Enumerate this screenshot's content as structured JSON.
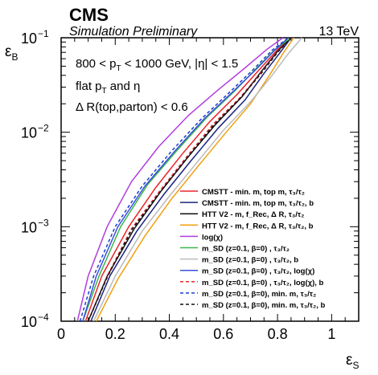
{
  "header": {
    "experiment": "CMS",
    "status": "Simulation Preliminary",
    "energy": "13 TeV"
  },
  "cuts": {
    "line1": "800 < p",
    "line1_sub": "T",
    "line1_rest": " < 1000 GeV, |η| < 1.5",
    "line2": "flat p",
    "line2_sub": "T",
    "line2_rest": " and η",
    "line3": "Δ R(top,parton) < 0.6"
  },
  "chart_data": {
    "type": "line",
    "xlabel": "ε",
    "xlabel_sub": "S",
    "ylabel": "ε",
    "ylabel_sub": "B",
    "xlim": [
      0,
      1.1
    ],
    "ylim": [
      0.0001,
      0.1
    ],
    "yscale": "log",
    "x_ticks": [
      {
        "v": 0,
        "label": "0"
      },
      {
        "v": 0.2,
        "label": "0.2"
      },
      {
        "v": 0.4,
        "label": "0.4"
      },
      {
        "v": 0.6,
        "label": "0.6"
      },
      {
        "v": 0.8,
        "label": "0.8"
      },
      {
        "v": 1.0,
        "label": "1"
      }
    ],
    "y_ticks": [
      {
        "v": 0.0001,
        "base": "10",
        "exp": "−4"
      },
      {
        "v": 0.001,
        "base": "10",
        "exp": "−3"
      },
      {
        "v": 0.01,
        "base": "10",
        "exp": "−2"
      },
      {
        "v": 0.1,
        "base": "10",
        "exp": "−1"
      }
    ],
    "grid": false,
    "legend_position": "bottom-right",
    "series": [
      {
        "legend": "CMSTT - min. m, top m, τ₃/τ₂",
        "color": "#e8252a",
        "dash": "solid",
        "x": [
          0.09,
          0.15,
          0.25,
          0.35,
          0.45,
          0.55,
          0.65,
          0.73,
          0.8,
          0.85
        ],
        "y": [
          0.0001,
          0.0003,
          0.001,
          0.0026,
          0.006,
          0.013,
          0.025,
          0.045,
          0.075,
          0.1
        ]
      },
      {
        "legend": "CMSTT - min. m, top m, τ₃/τ₂, b",
        "color": "#1a237e",
        "dash": "solid",
        "x": [
          0.11,
          0.18,
          0.28,
          0.38,
          0.48,
          0.58,
          0.68,
          0.75,
          0.81,
          0.85
        ],
        "y": [
          0.0001,
          0.0003,
          0.0009,
          0.0022,
          0.005,
          0.011,
          0.022,
          0.042,
          0.07,
          0.1
        ]
      },
      {
        "legend": "HTT V2 - m, f_Rec, Δ R, τ₃/τ₂",
        "color": "#111111",
        "dash": "solid",
        "x": [
          0.1,
          0.17,
          0.27,
          0.37,
          0.47,
          0.57,
          0.67,
          0.74,
          0.8,
          0.85
        ],
        "y": [
          0.0001,
          0.0003,
          0.00095,
          0.0024,
          0.0055,
          0.012,
          0.024,
          0.044,
          0.072,
          0.1
        ]
      },
      {
        "legend": "HTT V2 - m, f_Rec, Δ R, τ₃/τ₂, b",
        "color": "#f0a010",
        "dash": "solid",
        "x": [
          0.13,
          0.21,
          0.31,
          0.41,
          0.51,
          0.61,
          0.7,
          0.77,
          0.82,
          0.86
        ],
        "y": [
          0.0001,
          0.00028,
          0.0008,
          0.002,
          0.0045,
          0.01,
          0.02,
          0.04,
          0.068,
          0.1
        ]
      },
      {
        "legend": "log(χ)",
        "color": "#b13ee0",
        "dash": "solid",
        "x": [
          0.06,
          0.1,
          0.17,
          0.26,
          0.36,
          0.47,
          0.58,
          0.68,
          0.76,
          0.82
        ],
        "y": [
          0.0001,
          0.0003,
          0.001,
          0.003,
          0.007,
          0.015,
          0.028,
          0.048,
          0.075,
          0.1
        ]
      },
      {
        "legend": "m_SD (z=0.1, β=0) , τ₃/τ₂",
        "color": "#3cb44b",
        "dash": "solid",
        "x": [
          0.08,
          0.14,
          0.22,
          0.32,
          0.43,
          0.54,
          0.64,
          0.72,
          0.79,
          0.85
        ],
        "y": [
          0.0001,
          0.0003,
          0.001,
          0.0028,
          0.0065,
          0.0145,
          0.027,
          0.047,
          0.075,
          0.1
        ]
      },
      {
        "legend": "m_SD (z=0.1, β=0) , τ₃/τ₂, b",
        "color": "#bbbbbb",
        "dash": "solid",
        "x": [
          0.12,
          0.2,
          0.3,
          0.4,
          0.5,
          0.6,
          0.7,
          0.78,
          0.84,
          0.89
        ],
        "y": [
          0.0001,
          0.0003,
          0.0009,
          0.0021,
          0.0047,
          0.0105,
          0.021,
          0.04,
          0.068,
          0.1
        ]
      },
      {
        "legend": "m_SD (z=0.1, β=0) , τ₃/τ₂, log(χ)",
        "color": "#3a50d8",
        "dash": "solid",
        "x": [
          0.08,
          0.13,
          0.21,
          0.31,
          0.42,
          0.53,
          0.63,
          0.72,
          0.79,
          0.84
        ],
        "y": [
          0.0001,
          0.0003,
          0.001,
          0.0027,
          0.0063,
          0.014,
          0.026,
          0.046,
          0.074,
          0.1
        ]
      },
      {
        "legend": "m_SD (z=0.1, β=0) , τ₃/τ₂, log(χ), b",
        "color": "#e8252a",
        "dash": "dashed",
        "x": [
          0.1,
          0.17,
          0.26,
          0.36,
          0.46,
          0.56,
          0.66,
          0.74,
          0.8,
          0.85
        ],
        "y": [
          0.0001,
          0.0003,
          0.00095,
          0.0023,
          0.0053,
          0.012,
          0.023,
          0.043,
          0.071,
          0.1
        ]
      },
      {
        "legend": "m_SD (z=0.1, β=0), min. m, τ₃/τ₂",
        "color": "#1a3dd0",
        "dash": "dashed",
        "x": [
          0.07,
          0.12,
          0.2,
          0.3,
          0.41,
          0.52,
          0.62,
          0.71,
          0.78,
          0.84
        ],
        "y": [
          0.0001,
          0.0003,
          0.001,
          0.0027,
          0.0064,
          0.014,
          0.026,
          0.046,
          0.074,
          0.1
        ]
      },
      {
        "legend": "m_SD (z=0.1, β=0), min. m, τ₃/τ₂, b",
        "color": "#111111",
        "dash": "dashed",
        "x": [
          0.1,
          0.17,
          0.26,
          0.36,
          0.46,
          0.56,
          0.66,
          0.74,
          0.8,
          0.85
        ],
        "y": [
          0.0001,
          0.00029,
          0.00092,
          0.0022,
          0.0051,
          0.0115,
          0.0225,
          0.042,
          0.07,
          0.1
        ]
      }
    ]
  }
}
